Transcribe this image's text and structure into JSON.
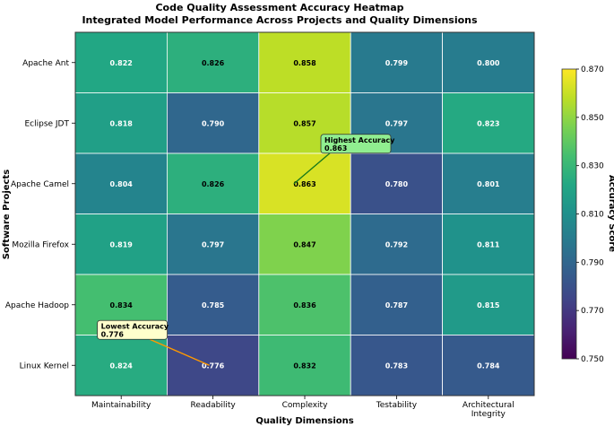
{
  "chart_data": {
    "type": "heatmap",
    "title": "Code Quality Assessment Accuracy Heatmap",
    "subtitle": "Integrated Model Performance Across Projects and Quality Dimensions",
    "xlabel": "Quality Dimensions",
    "ylabel": "Software Projects",
    "columns": [
      "Maintainability",
      "Readability",
      "Complexity",
      "Testability",
      "Architectural\nIntegrity"
    ],
    "rows": [
      "Apache Ant",
      "Eclipse JDT",
      "Apache Camel",
      "Mozilla Firefox",
      "Apache Hadoop",
      "Linux Kernel"
    ],
    "values": [
      [
        0.822,
        0.826,
        0.858,
        0.799,
        0.8
      ],
      [
        0.818,
        0.79,
        0.857,
        0.797,
        0.823
      ],
      [
        0.804,
        0.826,
        0.863,
        0.78,
        0.801
      ],
      [
        0.819,
        0.797,
        0.847,
        0.792,
        0.811
      ],
      [
        0.834,
        0.785,
        0.836,
        0.787,
        0.815
      ],
      [
        0.824,
        0.776,
        0.832,
        0.783,
        0.784
      ]
    ],
    "value_format": "3 decimals",
    "colormap": "viridis",
    "color_range": [
      0.75,
      0.87
    ],
    "colorbar": {
      "label": "Accuracy Score",
      "ticks": [
        "0.750",
        "0.770",
        "0.790",
        "0.810",
        "0.830",
        "0.850",
        "0.870"
      ],
      "tick_values": [
        0.75,
        0.77,
        0.79,
        0.81,
        0.83,
        0.85,
        0.87
      ]
    },
    "annotations": [
      {
        "text": "Highest Accuracy\n0.863",
        "row": 2,
        "col": 2,
        "arrow_color": "#1a7a1a",
        "box_color": "#90ee90"
      },
      {
        "text": "Lowest Accuracy\n0.776",
        "row": 5,
        "col": 1,
        "arrow_color": "#ff9900",
        "box_color": "#ffffcc"
      }
    ]
  }
}
